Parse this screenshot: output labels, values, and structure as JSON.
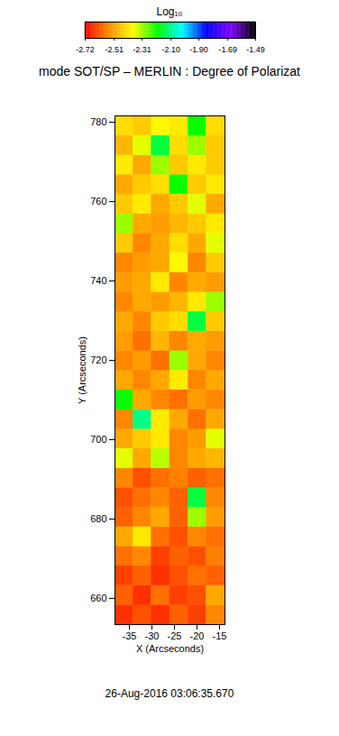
{
  "chart_data": {
    "type": "heatmap",
    "title": "mode SOT/SP – MERLIN : Degree of Polarizat",
    "x_label": "X (Arcseconds)",
    "y_label": "Y (Arcseconds)",
    "annotations": [
      "26-Aug-2016 03:06:35.670"
    ],
    "xlim": [
      -38.2,
      -13.8
    ],
    "ylim": [
      653.4,
      781.6
    ],
    "xticks": [
      -35,
      -30,
      -25,
      -20,
      -15
    ],
    "yticks": [
      660,
      680,
      700,
      720,
      740,
      760,
      780
    ],
    "x_edges": [
      -38.2,
      -34.13,
      -30.07,
      -26,
      -21.93,
      -17.87,
      -13.8
    ],
    "y_edges": [
      653.4,
      658.33,
      663.26,
      668.19,
      673.12,
      678.05,
      682.98,
      687.91,
      692.84,
      697.77,
      702.7,
      707.63,
      712.56,
      717.49,
      722.42,
      727.35,
      732.28,
      737.21,
      742.14,
      747.07,
      752.0,
      756.93,
      761.86,
      766.79,
      771.72,
      776.65,
      781.6
    ],
    "cells": [
      [
        -2.66,
        -2.62,
        -2.66,
        -2.6,
        -2.64,
        -2.55
      ],
      [
        -2.6,
        -2.66,
        -2.58,
        -2.64,
        -2.62,
        -2.5
      ],
      [
        -2.64,
        -2.6,
        -2.66,
        -2.62,
        -2.58,
        -2.6
      ],
      [
        -2.58,
        -2.55,
        -2.64,
        -2.6,
        -2.62,
        -2.56
      ],
      [
        -2.5,
        -2.4,
        -2.58,
        -2.62,
        -2.55,
        -2.58
      ],
      [
        -2.6,
        -2.55,
        -2.5,
        -2.6,
        -2.3,
        -2.52
      ],
      [
        -2.62,
        -2.58,
        -2.55,
        -2.6,
        -2.15,
        -2.55
      ],
      [
        -2.55,
        -2.62,
        -2.58,
        -2.56,
        -2.6,
        -2.58
      ],
      [
        -2.35,
        -2.5,
        -2.32,
        -2.55,
        -2.5,
        -2.48
      ],
      [
        -2.5,
        -2.45,
        -2.4,
        -2.55,
        -2.52,
        -2.35
      ],
      [
        -2.55,
        -2.1,
        -2.4,
        -2.5,
        -2.58,
        -2.5
      ],
      [
        -2.2,
        -2.5,
        -2.55,
        -2.58,
        -2.52,
        -2.55
      ],
      [
        -2.5,
        -2.55,
        -2.5,
        -2.4,
        -2.55,
        -2.5
      ],
      [
        -2.55,
        -2.52,
        -2.58,
        -2.3,
        -2.5,
        -2.55
      ],
      [
        -2.52,
        -2.58,
        -2.48,
        -2.55,
        -2.5,
        -2.52
      ],
      [
        -2.5,
        -2.55,
        -2.45,
        -2.42,
        -2.15,
        -2.45
      ],
      [
        -2.55,
        -2.5,
        -2.52,
        -2.48,
        -2.4,
        -2.3
      ],
      [
        -2.52,
        -2.5,
        -2.4,
        -2.55,
        -2.5,
        -2.52
      ],
      [
        -2.55,
        -2.52,
        -2.5,
        -2.38,
        -2.55,
        -2.45
      ],
      [
        -2.45,
        -2.55,
        -2.5,
        -2.42,
        -2.5,
        -2.35
      ],
      [
        -2.3,
        -2.5,
        -2.52,
        -2.48,
        -2.45,
        -2.4
      ],
      [
        -2.45,
        -2.4,
        -2.5,
        -2.45,
        -2.35,
        -2.5
      ],
      [
        -2.5,
        -2.45,
        -2.42,
        -2.2,
        -2.45,
        -2.4
      ],
      [
        -2.4,
        -2.5,
        -2.3,
        -2.45,
        -2.4,
        -2.45
      ],
      [
        -2.48,
        -2.35,
        -2.15,
        -2.42,
        -2.3,
        -2.45
      ],
      [
        -2.42,
        -2.45,
        -2.38,
        -2.4,
        -2.2,
        -2.42
      ]
    ],
    "colorbar": {
      "label": "Log₁₀",
      "lim": [
        -2.72,
        -1.49
      ],
      "ticks": [
        -2.72,
        -2.51,
        -2.31,
        {
          "value": -2.1,
          "label": "-2.10"
        },
        {
          "value": -1.9,
          "label": "-1.90"
        },
        -1.69,
        -1.49
      ],
      "colors": [
        "#ff0000",
        "#ff8c00",
        "#ffff00",
        "#00ff00",
        "#00ffff",
        "#0000ff",
        "#8000ff",
        "#000000"
      ]
    }
  }
}
